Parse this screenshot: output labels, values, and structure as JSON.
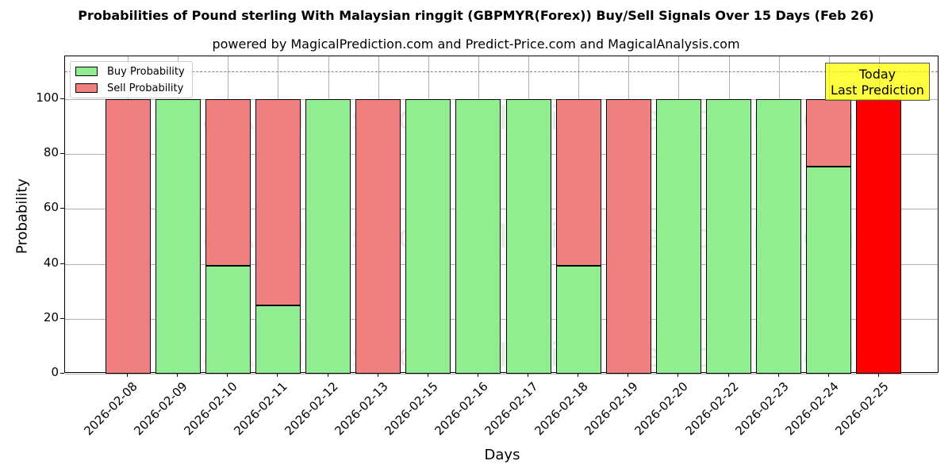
{
  "title": "Probabilities of Pound sterling With Malaysian ringgit (GBPMYR(Forex)) Buy/Sell Signals Over 15 Days (Feb 26)",
  "subtitle": "powered by MagicalPrediction.com and Predict-Price.com and MagicalAnalysis.com",
  "legend": {
    "buy": "Buy Probability",
    "sell": "Sell Probability"
  },
  "annotation": {
    "line1": "Today",
    "line2": "Last Prediction"
  },
  "watermarks": [
    "MagicalAnalysis.com",
    "MagicalPrediction.com"
  ],
  "colors": {
    "buy": "#90ee90",
    "sell": "#f08080",
    "today": "#ff0000",
    "annotation_bg": "#ffff00"
  },
  "chart_data": {
    "type": "bar",
    "stacked": true,
    "title": "Probabilities of Pound sterling With Malaysian ringgit (GBPMYR(Forex)) Buy/Sell Signals Over 15 Days (Feb 26)",
    "subtitle": "powered by MagicalPrediction.com and Predict-Price.com and MagicalAnalysis.com",
    "xlabel": "Days",
    "ylabel": "Probability",
    "ylim": [
      0,
      115
    ],
    "yticks": [
      0,
      20,
      40,
      60,
      80,
      100
    ],
    "grid": true,
    "reference_line": 110,
    "legend_position": "upper left",
    "categories": [
      "2026-02-08",
      "2026-02-09",
      "2026-02-10",
      "2026-02-11",
      "2026-02-12",
      "2026-02-13",
      "2026-02-15",
      "2026-02-16",
      "2026-02-17",
      "2026-02-18",
      "2026-02-19",
      "2026-02-20",
      "2026-02-22",
      "2026-02-23",
      "2026-02-24",
      "2026-02-25"
    ],
    "series": [
      {
        "name": "Buy Probability",
        "values": [
          0,
          100,
          39.3,
          24.9,
          100,
          0,
          100,
          100,
          100,
          39.3,
          0,
          100,
          100,
          100,
          75.3,
          0
        ]
      },
      {
        "name": "Sell Probability",
        "values": [
          100,
          0,
          60.7,
          75.1,
          0,
          100,
          0,
          0,
          0,
          60.7,
          100,
          0,
          0,
          0,
          24.7,
          100
        ]
      }
    ],
    "annotations": [
      {
        "text": "Today\nLast Prediction",
        "x": "2026-02-25"
      }
    ]
  }
}
